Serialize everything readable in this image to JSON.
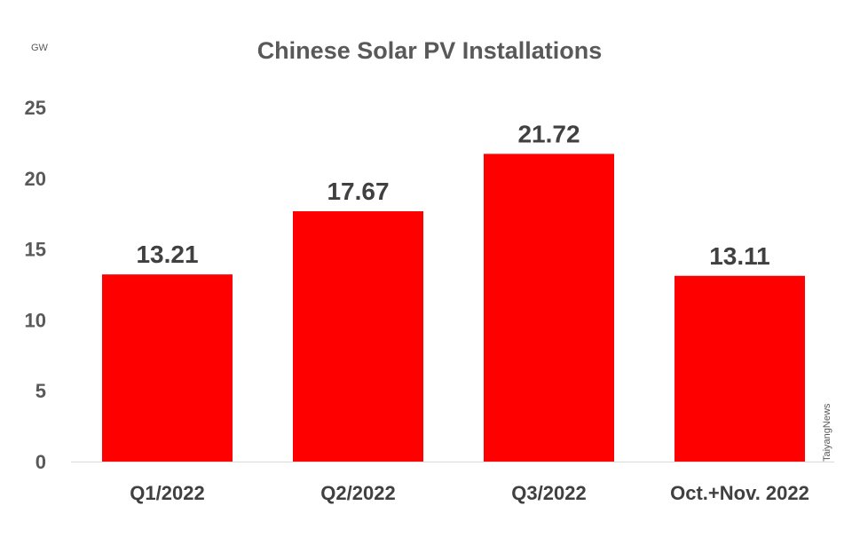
{
  "chart_data": {
    "type": "bar",
    "title": "Chinese Solar PV Installations",
    "ylabel": "GW",
    "xlabel": "",
    "categories": [
      "Q1/2022",
      "Q2/2022",
      "Q3/2022",
      "Oct.+Nov. 2022"
    ],
    "values": [
      13.21,
      17.67,
      21.72,
      13.11
    ],
    "data_labels": [
      "13.21",
      "17.67",
      "21.72",
      "13.11"
    ],
    "ylim": [
      0,
      25
    ],
    "yticks": [
      "0",
      "5",
      "10",
      "15",
      "20",
      "25"
    ],
    "grid": false,
    "legend": "none",
    "bar_color": "#ff0000",
    "watermark": "TaiyangNews"
  }
}
